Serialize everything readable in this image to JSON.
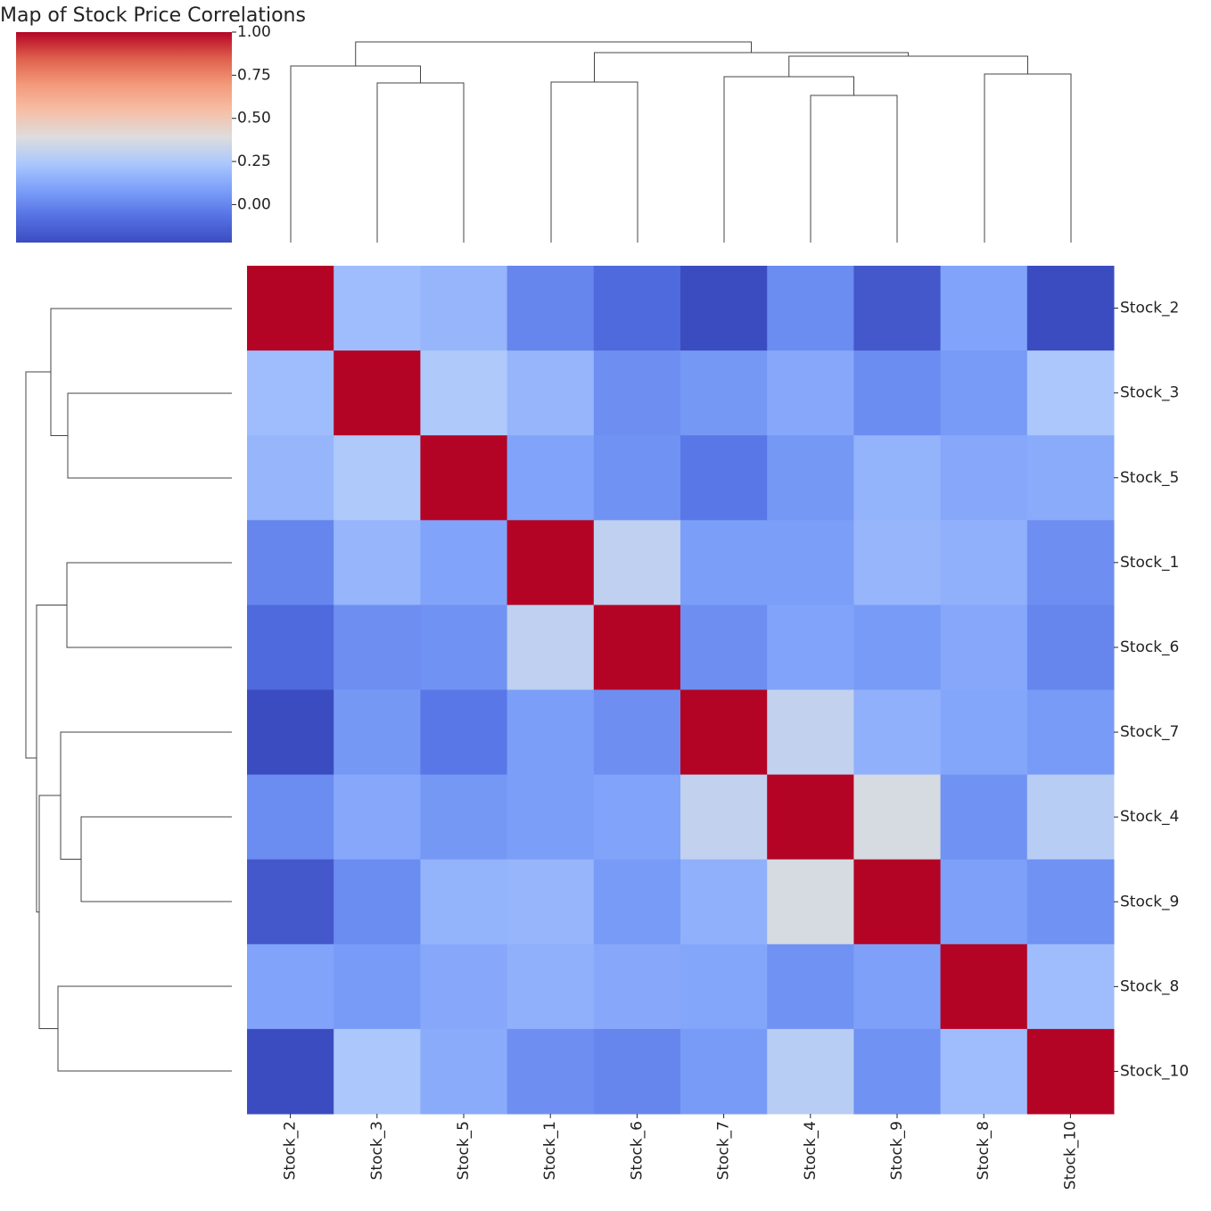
{
  "chart_data": {
    "type": "clustermap",
    "title": "Map of Stock Price Correlations",
    "categories": [
      "Stock_2",
      "Stock_3",
      "Stock_5",
      "Stock_1",
      "Stock_6",
      "Stock_7",
      "Stock_4",
      "Stock_9",
      "Stock_8",
      "Stock_10"
    ],
    "values": [
      [
        1,
        0.2,
        0.17,
        0.0,
        -0.1,
        -0.22,
        0.02,
        -0.17,
        0.1,
        -0.22
      ],
      [
        0.2,
        1,
        0.25,
        0.17,
        0.03,
        0.06,
        0.12,
        0.02,
        0.07,
        0.24
      ],
      [
        0.17,
        0.25,
        1,
        0.1,
        0.04,
        -0.05,
        0.06,
        0.16,
        0.12,
        0.13
      ],
      [
        0.0,
        0.17,
        0.1,
        1,
        0.3,
        0.08,
        0.08,
        0.17,
        0.15,
        0.03
      ],
      [
        -0.1,
        0.03,
        0.04,
        0.3,
        1,
        0.03,
        0.1,
        0.07,
        0.12,
        0.0
      ],
      [
        -0.22,
        0.06,
        -0.05,
        0.08,
        0.03,
        1,
        0.31,
        0.15,
        0.11,
        0.07
      ],
      [
        0.02,
        0.12,
        0.06,
        0.08,
        0.1,
        0.31,
        1,
        0.37,
        0.04,
        0.28
      ],
      [
        -0.17,
        0.02,
        0.16,
        0.17,
        0.07,
        0.15,
        0.37,
        1,
        0.09,
        0.04
      ],
      [
        0.1,
        0.07,
        0.12,
        0.15,
        0.12,
        0.11,
        0.04,
        0.09,
        1,
        0.2
      ],
      [
        -0.22,
        0.24,
        0.13,
        0.03,
        0.0,
        0.07,
        0.28,
        0.04,
        0.2,
        1
      ]
    ],
    "colormap": "coolwarm",
    "zlim": [
      -0.22,
      1.0
    ],
    "zticks": [
      {
        "value": 0,
        "label": "0.00"
      },
      {
        "value": 0.25,
        "label": "0.25"
      },
      {
        "value": 0.5,
        "label": "0.50"
      },
      {
        "value": 0.75,
        "label": "0.75"
      },
      {
        "value": 1,
        "label": "1.00"
      }
    ]
  }
}
